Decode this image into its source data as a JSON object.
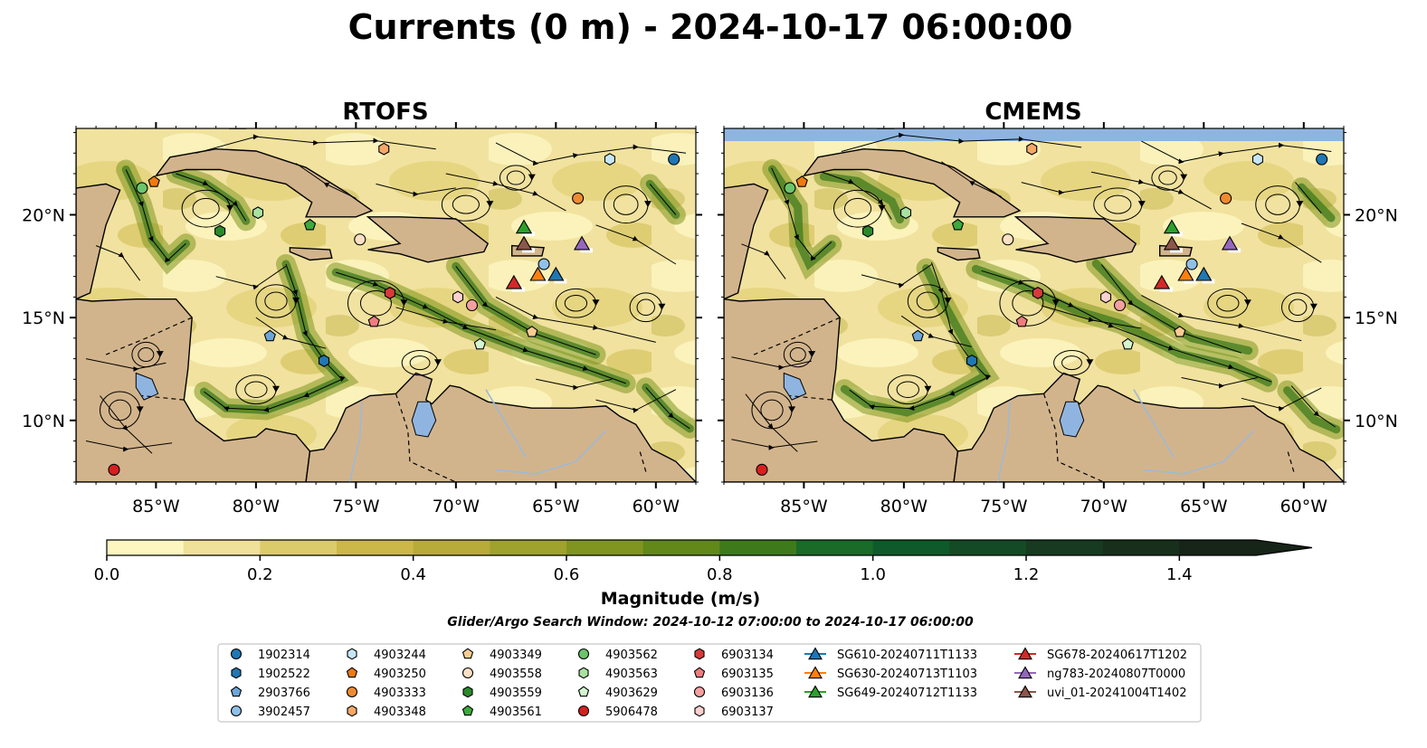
{
  "figure": {
    "title": "Currents (0 m) - 2024-10-17 06:00:00",
    "search_window": "Glider/Argo Search Window: 2024-10-12 07:00:00 to 2024-10-17 06:00:00"
  },
  "colors": {
    "land": "#d2b48c",
    "lake": "#8fb4e0",
    "rivers": "#9fb8d6",
    "cmap": [
      "#fdf6c0",
      "#efe09a",
      "#dccb6a",
      "#cbb848",
      "#b8ab3a",
      "#9fa22c",
      "#80951f",
      "#62881a",
      "#3e7a1c",
      "#1a6a28",
      "#0e5a2a",
      "#144a25",
      "#173a20",
      "#18301b",
      "#172418"
    ]
  },
  "panels": [
    {
      "id": "rtofs",
      "title": "RTOFS"
    },
    {
      "id": "cmems",
      "title": "CMEMS"
    }
  ],
  "axes": {
    "lon_range": [
      -89,
      -58
    ],
    "lat_range": [
      7,
      24.2
    ],
    "xticks": [
      -85,
      -80,
      -75,
      -70,
      -65,
      -60
    ],
    "xtick_labels": [
      "85°W",
      "80°W",
      "75°W",
      "70°W",
      "65°W",
      "60°W"
    ],
    "yticks": [
      10,
      15,
      20
    ],
    "ytick_labels": [
      "10°N",
      "15°N",
      "20°N"
    ]
  },
  "colorbar": {
    "label": "Magnitude (m/s)",
    "range": [
      0,
      1.5
    ],
    "extend": "max",
    "ticks": [
      0,
      0.2,
      0.4,
      0.6,
      0.8,
      1.0,
      1.2,
      1.4
    ],
    "tick_labels": [
      "0.0",
      "0.2",
      "0.4",
      "0.6",
      "0.8",
      "1.0",
      "1.2",
      "1.4"
    ]
  },
  "legend": {
    "columns": [
      [
        {
          "label": "1902314",
          "marker": "circle",
          "color": "#1f77b4"
        },
        {
          "label": "1902522",
          "marker": "hexagon",
          "color": "#1f77b4"
        },
        {
          "label": "2903766",
          "marker": "pentagon",
          "color": "#6ca6d9"
        },
        {
          "label": "3902457",
          "marker": "circle",
          "color": "#90c0e8"
        }
      ],
      [
        {
          "label": "4903244",
          "marker": "hexagon",
          "color": "#c6e6f7"
        },
        {
          "label": "4903250",
          "marker": "pentagon",
          "color": "#f07a10"
        },
        {
          "label": "4903333",
          "marker": "circle",
          "color": "#f08a30"
        },
        {
          "label": "4903348",
          "marker": "hexagon",
          "color": "#f6a868"
        }
      ],
      [
        {
          "label": "4903349",
          "marker": "pentagon",
          "color": "#f9cc92"
        },
        {
          "label": "4903558",
          "marker": "circle",
          "color": "#fbe0c4"
        },
        {
          "label": "4903559",
          "marker": "hexagon",
          "color": "#2a8a2a"
        },
        {
          "label": "4903561",
          "marker": "pentagon",
          "color": "#3caa3c"
        }
      ],
      [
        {
          "label": "4903562",
          "marker": "circle",
          "color": "#6cc46c"
        },
        {
          "label": "4903563",
          "marker": "hexagon",
          "color": "#a8e2a0"
        },
        {
          "label": "4903629",
          "marker": "pentagon",
          "color": "#d4f5d0"
        },
        {
          "label": "5906478",
          "marker": "circle",
          "color": "#d62020"
        }
      ],
      [
        {
          "label": "6903134",
          "marker": "hexagon",
          "color": "#d63a3a"
        },
        {
          "label": "6903135",
          "marker": "pentagon",
          "color": "#f07c80"
        },
        {
          "label": "6903136",
          "marker": "circle",
          "color": "#f4a0a0"
        },
        {
          "label": "6903137",
          "marker": "hexagon",
          "color": "#fbd0d0"
        }
      ],
      [
        {
          "label": "SG610-20240711T1133",
          "marker": "triangle",
          "color": "#1f77b4"
        },
        {
          "label": "SG630-20240713T1103",
          "marker": "triangle",
          "color": "#ff7f0e"
        },
        {
          "label": "SG649-20240712T1133",
          "marker": "triangle",
          "color": "#2ca02c"
        }
      ],
      [
        {
          "label": "SG678-20240617T1202",
          "marker": "triangle",
          "color": "#d62728"
        },
        {
          "label": "ng783-20240807T0000",
          "marker": "triangle",
          "color": "#9467bd"
        },
        {
          "label": "uvi_01-20241004T1402",
          "marker": "triangle",
          "color": "#8c564b"
        }
      ]
    ]
  },
  "argo_floats": [
    {
      "id": "1902314",
      "lon": -59.1,
      "lat": 22.7,
      "marker": "circle",
      "color": "#1f77b4"
    },
    {
      "id": "4903244",
      "lon": -62.3,
      "lat": 22.7,
      "marker": "hexagon",
      "color": "#c6e6f7"
    },
    {
      "id": "4903333",
      "lon": -63.9,
      "lat": 20.8,
      "marker": "circle",
      "color": "#f08a30"
    },
    {
      "id": "4903348",
      "lon": -73.6,
      "lat": 23.2,
      "marker": "hexagon",
      "color": "#f6a868"
    },
    {
      "id": "4903250",
      "lon": -85.1,
      "lat": 21.6,
      "marker": "pentagon",
      "color": "#f07a10"
    },
    {
      "id": "4903562",
      "lon": -85.7,
      "lat": 21.3,
      "marker": "circle",
      "color": "#6cc46c"
    },
    {
      "id": "4903563",
      "lon": -79.9,
      "lat": 20.1,
      "marker": "hexagon",
      "color": "#a8e2a0"
    },
    {
      "id": "4903559",
      "lon": -81.8,
      "lat": 19.2,
      "marker": "hexagon",
      "color": "#2a8a2a"
    },
    {
      "id": "4903561",
      "lon": -77.3,
      "lat": 19.5,
      "marker": "pentagon",
      "color": "#3caa3c"
    },
    {
      "id": "4903558",
      "lon": -74.8,
      "lat": 18.8,
      "marker": "circle",
      "color": "#fbe0c4"
    },
    {
      "id": "3902457",
      "lon": -65.6,
      "lat": 17.6,
      "marker": "circle",
      "color": "#90c0e8"
    },
    {
      "id": "6903134",
      "lon": -73.3,
      "lat": 16.2,
      "marker": "hexagon",
      "color": "#d63a3a"
    },
    {
      "id": "6903137",
      "lon": -69.9,
      "lat": 16.0,
      "marker": "hexagon",
      "color": "#fbd0d0"
    },
    {
      "id": "6903136",
      "lon": -69.2,
      "lat": 15.6,
      "marker": "circle",
      "color": "#f4a0a0"
    },
    {
      "id": "6903135",
      "lon": -74.1,
      "lat": 14.8,
      "marker": "pentagon",
      "color": "#f07c80"
    },
    {
      "id": "4903349",
      "lon": -66.2,
      "lat": 14.3,
      "marker": "pentagon",
      "color": "#f9cc92"
    },
    {
      "id": "4903629",
      "lon": -68.8,
      "lat": 13.7,
      "marker": "pentagon",
      "color": "#d4f5d0"
    },
    {
      "id": "2903766",
      "lon": -79.3,
      "lat": 14.1,
      "marker": "pentagon",
      "color": "#6ca6d9"
    },
    {
      "id": "1902522",
      "lon": -76.6,
      "lat": 12.9,
      "marker": "hexagon",
      "color": "#1f77b4"
    },
    {
      "id": "5906478",
      "lon": -87.1,
      "lat": 7.6,
      "marker": "circle",
      "color": "#d62020"
    }
  ],
  "gliders": [
    {
      "id": "SG649-20240712T1133",
      "lon": -66.6,
      "lat": 19.4,
      "color": "#2ca02c"
    },
    {
      "id": "uvi_01-20241004T1402",
      "lon": -66.6,
      "lat": 18.6,
      "color": "#8c564b"
    },
    {
      "id": "ng783-20240807T0000",
      "lon": -63.7,
      "lat": 18.6,
      "color": "#9467bd"
    },
    {
      "id": "SG630-20240713T1103",
      "lon": -65.9,
      "lat": 17.1,
      "color": "#ff7f0e"
    },
    {
      "id": "SG610-20240711T1133",
      "lon": -65.0,
      "lat": 17.1,
      "color": "#1f77b4"
    },
    {
      "id": "SG678-20240617T1202",
      "lon": -67.1,
      "lat": 16.7,
      "color": "#d62728"
    }
  ]
}
